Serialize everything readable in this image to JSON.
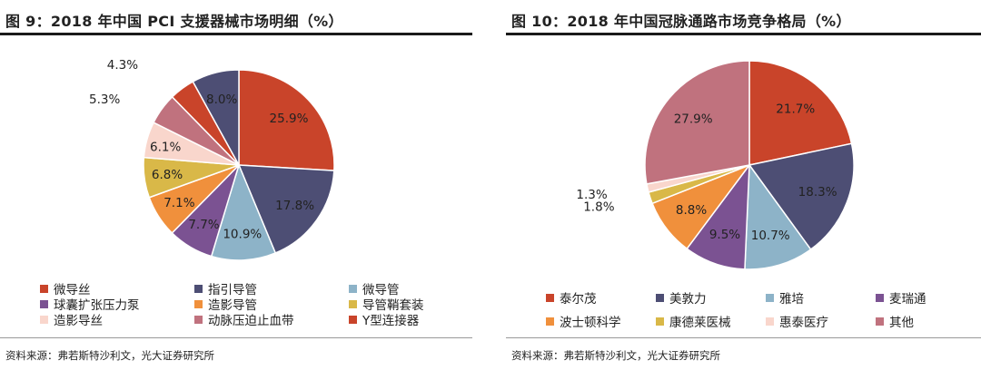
{
  "left": {
    "title": "图 9：2018 年中国 PCI 支援器械市场明细（%）",
    "source": "资料来源：弗若斯特沙利文，光大证券研究所",
    "chart_data": {
      "type": "pie",
      "title": "图 9：2018 年中国 PCI 支援器械市场明细（%）",
      "slices": [
        {
          "name": "微导丝",
          "value": 25.9,
          "label": "25.9%",
          "color": "#c9442a"
        },
        {
          "name": "指引导管",
          "value": 17.8,
          "label": "17.8%",
          "color": "#4d4e74"
        },
        {
          "name": "微导管",
          "value": 10.9,
          "label": "10.9%",
          "color": "#8db3c8"
        },
        {
          "name": "球囊扩张压力泵",
          "value": 7.7,
          "label": "7.7%",
          "color": "#7b5292"
        },
        {
          "name": "造影导管",
          "value": 7.1,
          "label": "7.1%",
          "color": "#f0903c"
        },
        {
          "name": "导管鞘套装",
          "value": 6.8,
          "label": "6.8%",
          "color": "#d9b848"
        },
        {
          "name": "造影导丝",
          "value": 6.1,
          "label": "6.1%",
          "color": "#f9d6cc"
        },
        {
          "name": "动脉压迫止血带",
          "value": 5.3,
          "label": "5.3%",
          "color": "#c0727e"
        },
        {
          "name": "Y型连接器",
          "value": 4.3,
          "label": "4.3%",
          "color": "#c9442a"
        },
        {
          "name": "",
          "value": 8.0,
          "label": "8.0%",
          "color": "#4d4e74"
        }
      ],
      "legend": [
        "微导丝",
        "指引导管",
        "微导管",
        "球囊扩张压力泵",
        "造影导管",
        "导管鞘套装",
        "造影导丝",
        "动脉压迫止血带",
        "Y型连接器"
      ]
    }
  },
  "right": {
    "title": "图 10：2018 年中国冠脉通路市场竞争格局（%）",
    "source": "资料来源：弗若斯特沙利文，光大证券研究所",
    "chart_data": {
      "type": "pie",
      "title": "图 10：2018 年中国冠脉通路市场竞争格局（%）",
      "slices": [
        {
          "name": "泰尔茂",
          "value": 21.7,
          "label": "21.7%",
          "color": "#c9442a"
        },
        {
          "name": "美敦力",
          "value": 18.3,
          "label": "18.3%",
          "color": "#4d4e74"
        },
        {
          "name": "雅培",
          "value": 10.7,
          "label": "10.7%",
          "color": "#8db3c8"
        },
        {
          "name": "麦瑞通",
          "value": 9.5,
          "label": "9.5%",
          "color": "#7b5292"
        },
        {
          "name": "波士顿科学",
          "value": 8.8,
          "label": "8.8%",
          "color": "#f0903c"
        },
        {
          "name": "康德莱医械",
          "value": 1.8,
          "label": "1.8%",
          "color": "#d9b848"
        },
        {
          "name": "惠泰医疗",
          "value": 1.3,
          "label": "1.3%",
          "color": "#f9d6cc"
        },
        {
          "name": "其他",
          "value": 27.9,
          "label": "27.9%",
          "color": "#c0727e"
        }
      ],
      "legend": [
        "泰尔茂",
        "美敦力",
        "雅培",
        "麦瑞通",
        "波士顿科学",
        "康德莱医械",
        "惠泰医疗",
        "其他"
      ]
    }
  }
}
